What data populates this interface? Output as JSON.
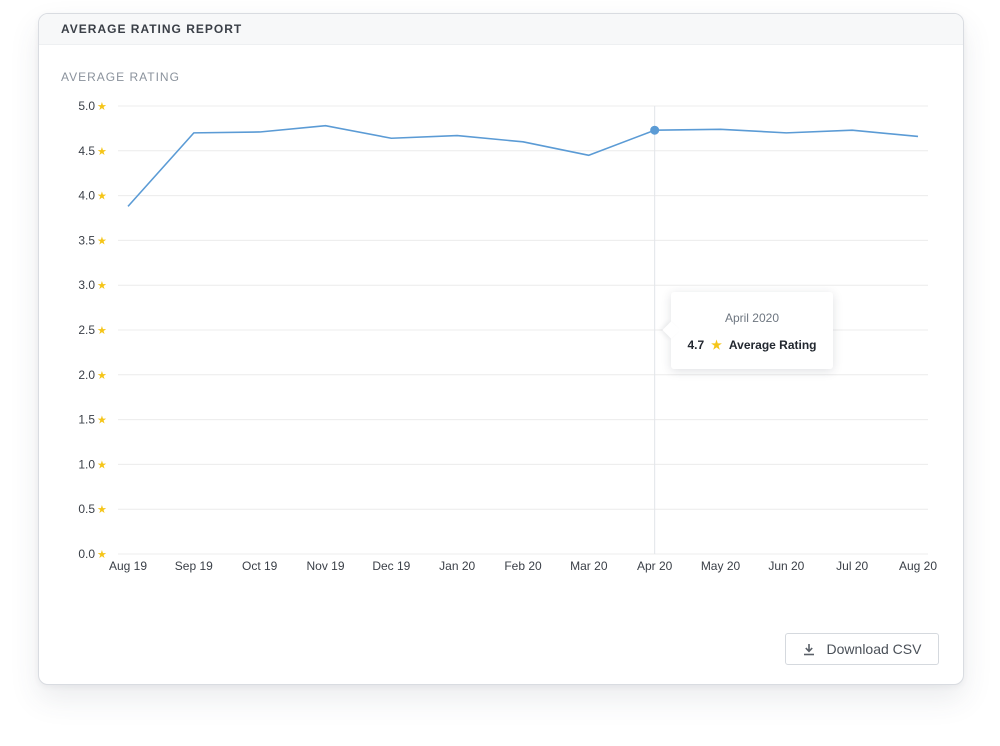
{
  "report": {
    "title": "AVERAGE RATING REPORT",
    "chart_label": "AVERAGE RATING",
    "download_label": "Download CSV",
    "download_icon": "download-icon"
  },
  "tooltip": {
    "date": "April 2020",
    "value": "4.7",
    "label": "Average Rating",
    "icon": "star-icon"
  },
  "colors": {
    "line": "#5b9bd5",
    "star": "#f5c518",
    "grid": "#ececec",
    "axis_text": "#3a3f47"
  },
  "chart_data": {
    "type": "line",
    "title": "",
    "xlabel": "",
    "ylabel": "AVERAGE RATING",
    "categories": [
      "Aug 19",
      "Sep 19",
      "Oct 19",
      "Nov 19",
      "Dec 19",
      "Jan 20",
      "Feb 20",
      "Mar 20",
      "Apr 20",
      "May 20",
      "Jun 20",
      "Jul 20",
      "Aug 20"
    ],
    "series": [
      {
        "values": [
          3.88,
          4.7,
          4.71,
          4.78,
          4.64,
          4.67,
          4.6,
          4.45,
          4.73,
          4.74,
          4.7,
          4.73,
          4.66
        ]
      }
    ],
    "ylim": [
      0,
      5
    ],
    "y_ticks": [
      "0.0",
      "0.5",
      "1.0",
      "1.5",
      "2.0",
      "2.5",
      "3.0",
      "3.5",
      "4.0",
      "4.5",
      "5.0"
    ],
    "y_tick_suffix_icon": "star-icon",
    "grid": true,
    "highlighted_category": "Apr 20"
  }
}
